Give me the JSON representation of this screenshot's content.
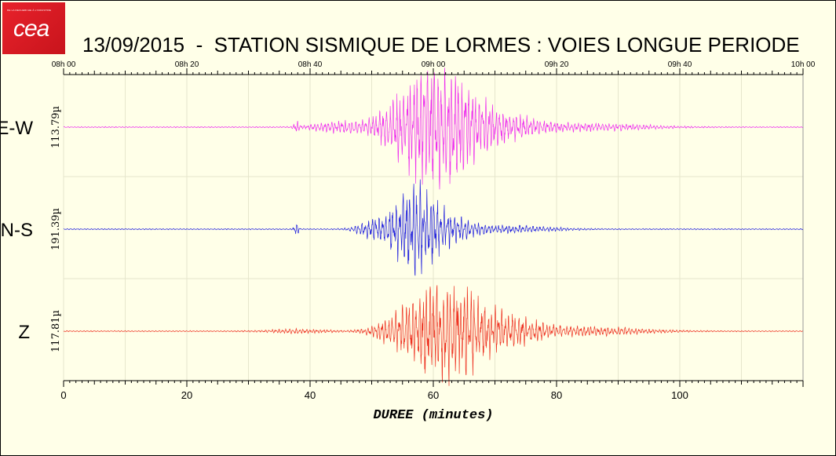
{
  "title": "13/09/2015  -  STATION SISMIQUE DE LORMES : VOIES LONGUE PERIODE",
  "logo": {
    "text": "cea",
    "small_text": "DE LA RECHERCHE À L'INDUSTRIE"
  },
  "chart_data": {
    "type": "line",
    "xlabel": "DUREE (minutes)",
    "xlim": [
      0,
      120
    ],
    "x_ticks": [
      0,
      20,
      40,
      60,
      80,
      100
    ],
    "top_axis_labels": [
      "08h 00",
      "08h 20",
      "08h 40",
      "09h 00",
      "09h 20",
      "09h 40",
      "10h 00"
    ],
    "grid": true,
    "series": [
      {
        "name": "E-W",
        "scale": "113.79µ",
        "color": "#ee30ee",
        "events": [
          {
            "t": 37.8,
            "amp": 0.12,
            "dur": 0.3
          },
          {
            "t": 44,
            "amp": 0.12,
            "dur": 3
          },
          {
            "t": 56,
            "amp": 0.55,
            "dur": 4
          },
          {
            "t": 61,
            "amp": 0.95,
            "dur": 4
          },
          {
            "t": 66,
            "amp": 0.3,
            "dur": 3
          },
          {
            "t": 72,
            "amp": 0.25,
            "dur": 4
          },
          {
            "t": 85,
            "amp": 0.08,
            "dur": 8
          }
        ]
      },
      {
        "name": "N-S",
        "scale": "191.39µ",
        "color": "#2222dd",
        "events": [
          {
            "t": 37.8,
            "amp": 0.12,
            "dur": 0.3
          },
          {
            "t": 50,
            "amp": 0.15,
            "dur": 2
          },
          {
            "t": 57,
            "amp": 0.95,
            "dur": 3
          },
          {
            "t": 63,
            "amp": 0.18,
            "dur": 3
          },
          {
            "t": 72,
            "amp": 0.08,
            "dur": 6
          }
        ]
      },
      {
        "name": "Z",
        "scale": "117.81µ",
        "color": "#ee3322",
        "events": [
          {
            "t": 38,
            "amp": 0.04,
            "dur": 4
          },
          {
            "t": 54,
            "amp": 0.2,
            "dur": 3
          },
          {
            "t": 61,
            "amp": 0.95,
            "dur": 4
          },
          {
            "t": 66,
            "amp": 0.35,
            "dur": 3
          },
          {
            "t": 72,
            "amp": 0.3,
            "dur": 4
          },
          {
            "t": 84,
            "amp": 0.1,
            "dur": 8
          }
        ]
      }
    ]
  }
}
